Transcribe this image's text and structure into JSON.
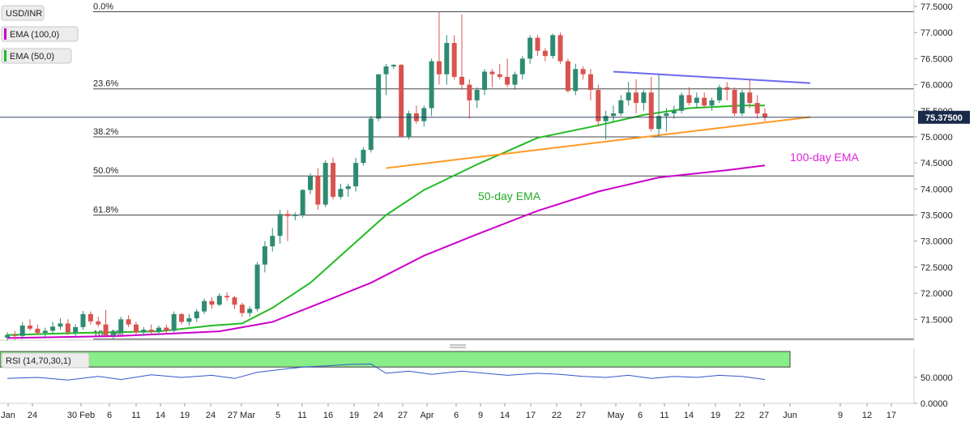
{
  "title": "USD/INR",
  "legend": [
    {
      "label": "EMA (100,0)",
      "color": "#cc00cc"
    },
    {
      "label": "EMA (50,0)",
      "color": "#22bb22"
    }
  ],
  "price_box": {
    "value": "75.37500",
    "color": "#1a2a4a"
  },
  "annotations": {
    "ema100": {
      "text": "100-day EMA",
      "color": "#dd22dd"
    },
    "ema50": {
      "text": "50-day EMA",
      "color": "#22aa22"
    }
  },
  "colors": {
    "up": "#2e8b72",
    "down": "#d9534f",
    "ema50": "#22bb22",
    "ema100": "#cc00cc",
    "trend_support": "#ff9922",
    "trend_resist": "#6a6aee",
    "rsi_line": "#3355cc",
    "rsi_over": "#88ee88",
    "rsi_under": "#ff7777"
  },
  "chart_data": [
    {
      "type": "candlestick",
      "title": "USD/INR",
      "ylim": [
        71.1,
        77.5
      ],
      "y_ticks": [
        "77.5000",
        "77.0000",
        "76.5000",
        "76.0000",
        "75.5000",
        "75.0000",
        "74.5000",
        "74.0000",
        "73.5000",
        "73.0000",
        "72.5000",
        "72.0000",
        "71.5000"
      ],
      "x_ticks": [
        "Jan",
        "24",
        "30 Feb",
        "6",
        "11",
        "14",
        "19",
        "24",
        "27 Mar",
        "5",
        "11",
        "16",
        "19",
        "24",
        "27",
        "Apr",
        "6",
        "9",
        "14",
        "17",
        "22",
        "27",
        "May",
        "6",
        "11",
        "14",
        "19",
        "22",
        "27",
        "Jun",
        "9",
        "12",
        "17"
      ],
      "fibonacci": [
        {
          "label": "0.0%",
          "value": 77.4
        },
        {
          "label": "23.6%",
          "value": 75.92
        },
        {
          "label": "38.2%",
          "value": 75.0
        },
        {
          "label": "50.0%",
          "value": 74.25
        },
        {
          "label": "61.8%",
          "value": 73.5
        },
        {
          "label": "100.0%",
          "value": 71.12
        }
      ],
      "candles": [
        [
          71.15,
          71.25,
          71.08,
          71.2
        ],
        [
          71.2,
          71.28,
          71.1,
          71.18
        ],
        [
          71.18,
          71.45,
          71.12,
          71.38
        ],
        [
          71.38,
          71.5,
          71.28,
          71.32
        ],
        [
          71.32,
          71.4,
          71.2,
          71.24
        ],
        [
          71.24,
          71.34,
          71.15,
          71.28
        ],
        [
          71.28,
          71.45,
          71.22,
          71.36
        ],
        [
          71.36,
          71.52,
          71.3,
          71.42
        ],
        [
          71.42,
          71.5,
          71.2,
          71.25
        ],
        [
          71.25,
          71.4,
          71.18,
          71.35
        ],
        [
          71.35,
          71.66,
          71.3,
          71.6
        ],
        [
          71.6,
          71.65,
          71.4,
          71.46
        ],
        [
          71.46,
          71.55,
          71.35,
          71.4
        ],
        [
          71.4,
          71.68,
          71.15,
          71.2
        ],
        [
          71.2,
          71.3,
          71.1,
          71.25
        ],
        [
          71.25,
          71.55,
          71.22,
          71.5
        ],
        [
          71.5,
          71.58,
          71.35,
          71.4
        ],
        [
          71.4,
          71.45,
          71.2,
          71.25
        ],
        [
          71.25,
          71.35,
          71.18,
          71.3
        ],
        [
          71.3,
          71.4,
          71.2,
          71.26
        ],
        [
          71.26,
          71.38,
          71.2,
          71.34
        ],
        [
          71.34,
          71.4,
          71.22,
          71.28
        ],
        [
          71.28,
          71.65,
          71.25,
          71.6
        ],
        [
          71.6,
          71.62,
          71.4,
          71.45
        ],
        [
          71.45,
          71.6,
          71.38,
          71.52
        ],
        [
          71.52,
          71.7,
          71.45,
          71.65
        ],
        [
          71.65,
          71.9,
          71.6,
          71.85
        ],
        [
          71.85,
          71.92,
          71.7,
          71.78
        ],
        [
          71.78,
          72.0,
          71.75,
          71.95
        ],
        [
          71.95,
          72.02,
          71.85,
          71.92
        ],
        [
          71.92,
          71.95,
          71.7,
          71.78
        ],
        [
          71.78,
          71.82,
          71.55,
          71.62
        ],
        [
          71.62,
          71.75,
          71.55,
          71.7
        ],
        [
          71.7,
          72.6,
          71.65,
          72.55
        ],
        [
          72.55,
          73.0,
          72.4,
          72.9
        ],
        [
          72.9,
          73.25,
          72.8,
          73.1
        ],
        [
          73.1,
          73.6,
          72.95,
          73.52
        ],
        [
          73.52,
          73.6,
          73.0,
          73.48
        ],
        [
          73.48,
          73.55,
          73.4,
          73.5
        ],
        [
          73.5,
          74.0,
          73.45,
          73.98
        ],
        [
          73.98,
          74.3,
          73.9,
          74.25
        ],
        [
          74.25,
          74.4,
          73.6,
          73.7
        ],
        [
          73.7,
          74.55,
          73.65,
          74.5
        ],
        [
          74.5,
          74.6,
          73.8,
          73.85
        ],
        [
          73.85,
          74.1,
          73.8,
          74.0
        ],
        [
          74.0,
          74.1,
          73.85,
          74.05
        ],
        [
          74.05,
          74.6,
          73.95,
          74.5
        ],
        [
          74.5,
          74.8,
          74.45,
          74.75
        ],
        [
          74.75,
          75.4,
          74.7,
          75.35
        ],
        [
          75.35,
          76.2,
          75.3,
          76.2
        ],
        [
          76.2,
          76.4,
          75.8,
          76.35
        ],
        [
          76.35,
          76.4,
          76.3,
          76.38
        ],
        [
          76.38,
          76.4,
          75.0,
          75.0
        ],
        [
          75.0,
          75.5,
          74.95,
          75.45
        ],
        [
          75.45,
          75.6,
          75.25,
          75.3
        ],
        [
          75.3,
          75.6,
          75.2,
          75.55
        ],
        [
          75.55,
          76.5,
          75.4,
          76.45
        ],
        [
          76.45,
          77.4,
          76.0,
          76.2
        ],
        [
          76.2,
          76.95,
          76.0,
          76.8
        ],
        [
          76.8,
          76.95,
          76.1,
          76.15
        ],
        [
          76.15,
          77.35,
          75.9,
          76.0
        ],
        [
          76.0,
          76.1,
          75.35,
          75.7
        ],
        [
          75.7,
          75.95,
          75.55,
          75.9
        ],
        [
          75.9,
          76.3,
          75.8,
          76.25
        ],
        [
          76.25,
          76.3,
          75.95,
          76.2
        ],
        [
          76.2,
          76.4,
          76.1,
          76.15
        ],
        [
          76.15,
          76.5,
          75.95,
          76.0
        ],
        [
          76.0,
          76.25,
          75.9,
          76.2
        ],
        [
          76.2,
          76.55,
          76.1,
          76.5
        ],
        [
          76.5,
          76.95,
          76.4,
          76.9
        ],
        [
          76.9,
          76.95,
          76.55,
          76.65
        ],
        [
          76.65,
          76.7,
          76.45,
          76.55
        ],
        [
          76.55,
          76.98,
          76.5,
          76.95
        ],
        [
          76.95,
          77.0,
          76.4,
          76.45
        ],
        [
          76.45,
          76.5,
          75.85,
          75.88
        ],
        [
          75.88,
          76.4,
          75.8,
          76.3
        ],
        [
          76.3,
          76.35,
          76.1,
          76.2
        ],
        [
          76.2,
          76.3,
          75.7,
          75.9
        ],
        [
          75.9,
          76.0,
          75.2,
          75.3
        ],
        [
          75.3,
          75.5,
          74.95,
          75.4
        ],
        [
          75.4,
          75.6,
          75.3,
          75.45
        ],
        [
          75.45,
          75.8,
          75.4,
          75.7
        ],
        [
          75.7,
          76.05,
          75.6,
          75.85
        ],
        [
          75.85,
          76.1,
          75.45,
          75.65
        ],
        [
          75.65,
          75.9,
          75.5,
          75.85
        ],
        [
          75.85,
          76.15,
          75.1,
          75.15
        ],
        [
          75.15,
          76.2,
          75.0,
          75.4
        ],
        [
          75.4,
          75.55,
          75.1,
          75.45
        ],
        [
          75.45,
          75.6,
          75.35,
          75.5
        ],
        [
          75.5,
          75.85,
          75.45,
          75.8
        ],
        [
          75.8,
          75.95,
          75.6,
          75.65
        ],
        [
          75.65,
          75.85,
          75.55,
          75.75
        ],
        [
          75.75,
          75.85,
          75.55,
          75.6
        ],
        [
          75.6,
          75.75,
          75.5,
          75.7
        ],
        [
          75.7,
          76.0,
          75.65,
          75.95
        ],
        [
          75.95,
          76.05,
          75.7,
          75.9
        ],
        [
          75.9,
          75.95,
          75.4,
          75.45
        ],
        [
          75.45,
          75.9,
          75.4,
          75.85
        ],
        [
          75.85,
          76.1,
          75.55,
          75.65
        ],
        [
          75.65,
          75.8,
          75.35,
          75.45
        ],
        [
          75.45,
          75.55,
          75.3,
          75.375
        ]
      ],
      "ema50": [
        [
          0,
          71.2
        ],
        [
          10,
          71.24
        ],
        [
          20,
          71.27
        ],
        [
          27,
          71.38
        ],
        [
          31,
          71.42
        ],
        [
          35,
          71.72
        ],
        [
          40,
          72.2
        ],
        [
          46,
          72.98
        ],
        [
          50,
          73.5
        ],
        [
          55,
          73.98
        ],
        [
          62,
          74.47
        ],
        [
          70,
          74.98
        ],
        [
          78,
          75.22
        ],
        [
          84,
          75.42
        ],
        [
          90,
          75.55
        ],
        [
          97,
          75.6
        ],
        [
          100,
          75.6
        ]
      ],
      "ema100": [
        [
          0,
          71.14
        ],
        [
          15,
          71.18
        ],
        [
          28,
          71.27
        ],
        [
          35,
          71.45
        ],
        [
          42,
          71.85
        ],
        [
          48,
          72.2
        ],
        [
          55,
          72.72
        ],
        [
          62,
          73.13
        ],
        [
          70,
          73.58
        ],
        [
          78,
          73.95
        ],
        [
          86,
          74.22
        ],
        [
          95,
          74.36
        ],
        [
          100,
          74.45
        ]
      ],
      "trend_support": {
        "from": [
          50,
          74.4
        ],
        "to": [
          106,
          75.38
        ]
      },
      "trend_resistance": {
        "from": [
          80,
          76.25
        ],
        "to": [
          106,
          76.03
        ]
      }
    },
    {
      "type": "line",
      "title": "RSI (14,70,30,1)",
      "ylim": [
        0,
        100
      ],
      "y_ticks": [
        "50.0000",
        "0.0000"
      ],
      "overbought": 70,
      "oversold": 30,
      "values": [
        [
          0,
          48
        ],
        [
          4,
          50
        ],
        [
          8,
          45
        ],
        [
          12,
          52
        ],
        [
          15,
          46
        ],
        [
          19,
          55
        ],
        [
          23,
          50
        ],
        [
          27,
          54
        ],
        [
          30,
          48
        ],
        [
          33,
          60
        ],
        [
          36,
          65
        ],
        [
          39,
          70
        ],
        [
          42,
          72
        ],
        [
          45,
          75
        ],
        [
          48,
          76
        ],
        [
          50,
          58
        ],
        [
          53,
          62
        ],
        [
          56,
          56
        ],
        [
          60,
          62
        ],
        [
          63,
          58
        ],
        [
          66,
          54
        ],
        [
          70,
          58
        ],
        [
          73,
          56
        ],
        [
          76,
          52
        ],
        [
          79,
          50
        ],
        [
          82,
          54
        ],
        [
          85,
          48
        ],
        [
          88,
          52
        ],
        [
          91,
          50
        ],
        [
          94,
          54
        ],
        [
          97,
          52
        ],
        [
          100,
          46
        ]
      ]
    }
  ]
}
